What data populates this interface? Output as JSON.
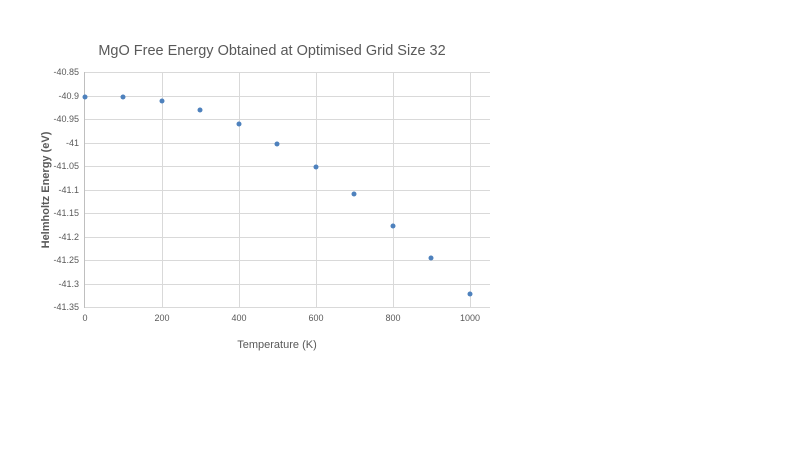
{
  "page": {
    "background_color": "#ffffff"
  },
  "chart": {
    "title": "MgO Free Energy Obtained at Optimised Grid Size 32",
    "x_axis_title": "Temperature (K)",
    "y_axis_title": "Helmholtz Energy (eV)"
  },
  "chart_data": {
    "type": "scatter",
    "title": "MgO Free Energy Obtained at Optimised Grid Size 32",
    "xlabel": "Temperature (K)",
    "ylabel": "Helmholtz Energy (eV)",
    "x": [
      0,
      100,
      200,
      300,
      400,
      500,
      600,
      700,
      800,
      900,
      1000
    ],
    "y": [
      -40.904,
      -40.904,
      -40.912,
      -40.93,
      -40.961,
      -41.004,
      -41.053,
      -41.109,
      -41.177,
      -41.246,
      -41.322
    ],
    "series_name": "MgO Free Energy",
    "xlim": [
      0,
      1052
    ],
    "ylim": [
      -41.35,
      -40.85
    ],
    "x_ticks": [
      0,
      200,
      400,
      600,
      800,
      1000
    ],
    "x_tick_labels": [
      "0",
      "200",
      "400",
      "600",
      "800",
      "1000"
    ],
    "y_ticks": [
      -40.85,
      -40.9,
      -40.95,
      -41,
      -41.05,
      -41.1,
      -41.15,
      -41.2,
      -41.25,
      -41.3,
      -41.35
    ],
    "y_tick_labels": [
      "-40.85",
      "-40.9",
      "-40.95",
      "-41",
      "-41.05",
      "-41.1",
      "-41.15",
      "-41.2",
      "-41.25",
      "-41.3",
      "-41.35"
    ],
    "grid": true,
    "legend": false,
    "legend_position": "none",
    "marker_color": "#4E81BD",
    "gridline_color": "#D9D9D9",
    "axis_line_color": "#BFBFBF",
    "text_color": "#595959"
  }
}
